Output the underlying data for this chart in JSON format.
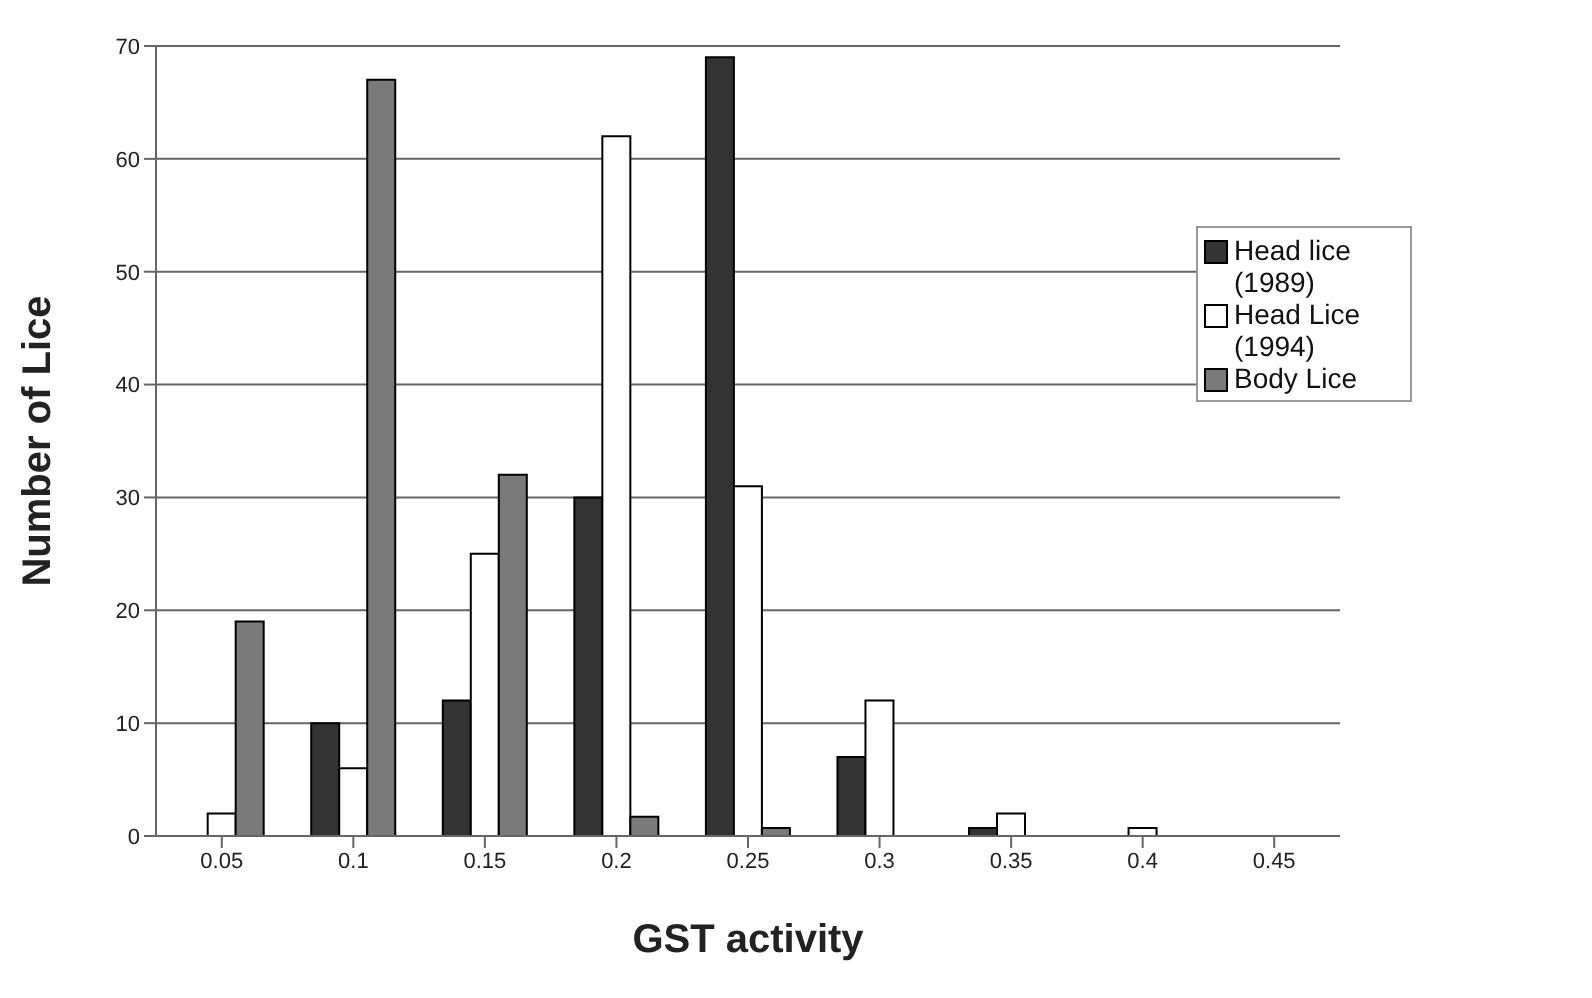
{
  "chart_data": {
    "type": "bar",
    "xlabel": "GST activity",
    "ylabel": "Number of Lice",
    "categories": [
      "0.05",
      "0.1",
      "0.15",
      "0.2",
      "0.25",
      "0.3",
      "0.35",
      "0.4",
      "0.45"
    ],
    "series": [
      {
        "name": "Head lice (1989)",
        "color": "#333333",
        "values": [
          0,
          10,
          12,
          30,
          69,
          7,
          0.7,
          0,
          0
        ]
      },
      {
        "name": "Head Lice (1994)",
        "color": "#ffffff",
        "values": [
          2,
          6,
          25,
          62,
          31,
          12,
          2,
          0.7,
          0
        ]
      },
      {
        "name": "Body Lice",
        "color": "#7a7a7a",
        "values": [
          19,
          67,
          32,
          1.7,
          0.7,
          0,
          0,
          0,
          0
        ]
      }
    ],
    "ylim": [
      0,
      70
    ],
    "yticks": [
      0,
      10,
      20,
      30,
      40,
      50,
      60,
      70
    ],
    "grid": "y",
    "legend": "right"
  }
}
